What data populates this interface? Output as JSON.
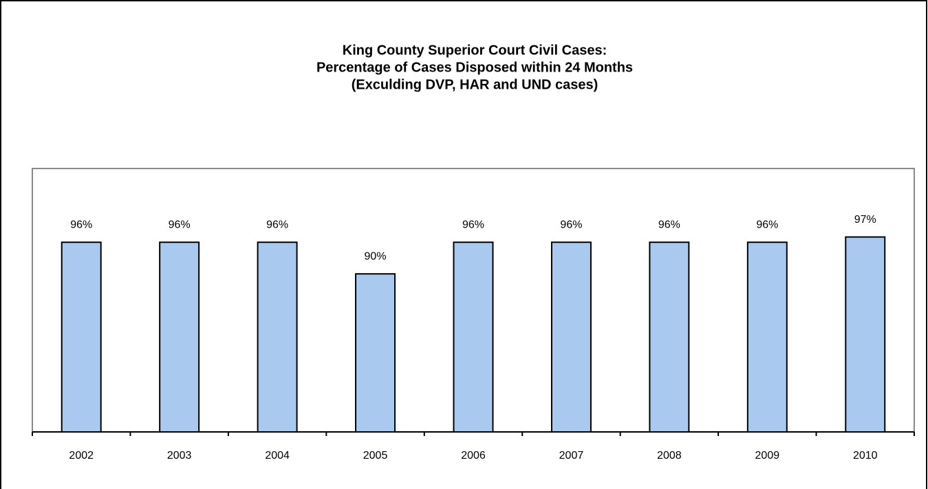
{
  "chart_data": {
    "type": "bar",
    "title": [
      "King County Superior Court Civil Cases:",
      "Percentage of Cases Disposed within 24 Months",
      "(Exculding DVP, HAR and UND cases)"
    ],
    "categories": [
      "2002",
      "2003",
      "2004",
      "2005",
      "2006",
      "2007",
      "2008",
      "2009",
      "2010"
    ],
    "values": [
      96,
      96,
      96,
      90,
      96,
      96,
      96,
      96,
      97
    ],
    "value_labels": [
      "96%",
      "96%",
      "96%",
      "90%",
      "96%",
      "96%",
      "96%",
      "96%",
      "97%"
    ],
    "color": "#a9c9ef",
    "ylim": [
      60,
      110
    ]
  }
}
